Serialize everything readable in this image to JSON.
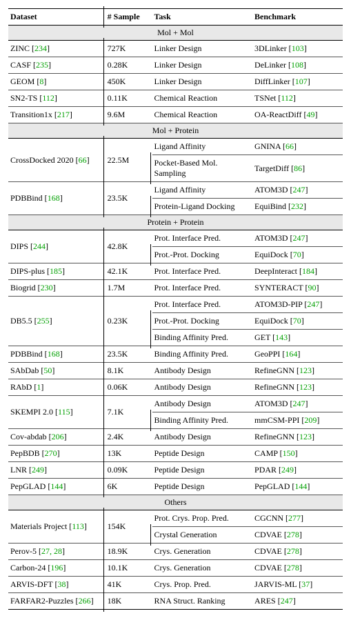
{
  "colors": {
    "cite": "#00a000",
    "section_bg": "#e8e8e8"
  },
  "headers": {
    "dataset": "Dataset",
    "sample": "# Sample",
    "task": "Task",
    "benchmark": "Benchmark"
  },
  "sections": [
    {
      "title": "Mol + Mol",
      "rows": [
        {
          "dataset_name": "ZINC",
          "dataset_cite": "234",
          "sample": "727K",
          "tasks": [
            {
              "task": "Linker Design",
              "bench_name": "3DLinker",
              "bench_cite": "103"
            }
          ]
        },
        {
          "dataset_name": "CASF",
          "dataset_cite": "235",
          "sample": "0.28K",
          "tasks": [
            {
              "task": "Linker Design",
              "bench_name": "DeLinker",
              "bench_cite": "108"
            }
          ]
        },
        {
          "dataset_name": "GEOM",
          "dataset_cite": "8",
          "sample": "450K",
          "tasks": [
            {
              "task": "Linker Design",
              "bench_name": "DiffLinker",
              "bench_cite": "107"
            }
          ]
        },
        {
          "dataset_name": "SN2-TS",
          "dataset_cite": "112",
          "sample": "0.11K",
          "tasks": [
            {
              "task": "Chemical Reaction",
              "bench_name": "TSNet",
              "bench_cite": "112"
            }
          ]
        },
        {
          "dataset_name": "Transition1x",
          "dataset_cite": "217",
          "sample": "9.6M",
          "tasks": [
            {
              "task": "Chemical Reaction",
              "bench_name": "OA-ReactDiff",
              "bench_cite": "49"
            }
          ]
        }
      ]
    },
    {
      "title": "Mol + Protein",
      "rows": [
        {
          "dataset_name": "CrossDocked 2020",
          "dataset_cite": "66",
          "sample": "22.5M",
          "tasks": [
            {
              "task": "Ligand Affinity",
              "bench_name": "GNINA",
              "bench_cite": "66"
            },
            {
              "task": "Pocket-Based Mol. Sampling",
              "bench_name": "TargetDiff",
              "bench_cite": "86"
            }
          ]
        },
        {
          "dataset_name": "PDBBind",
          "dataset_cite": "168",
          "sample": "23.5K",
          "tasks": [
            {
              "task": "Ligand Affinity",
              "bench_name": "ATOM3D",
              "bench_cite": "247"
            },
            {
              "task": "Protein-Ligand Docking",
              "bench_name": "EquiBind",
              "bench_cite": "232"
            }
          ]
        }
      ]
    },
    {
      "title": "Protein + Protein",
      "rows": [
        {
          "dataset_name": "DIPS",
          "dataset_cite": "244",
          "sample": "42.8K",
          "tasks": [
            {
              "task": "Prot. Interface Pred.",
              "bench_name": "ATOM3D",
              "bench_cite": "247"
            },
            {
              "task": "Prot.-Prot. Docking",
              "bench_name": "EquiDock",
              "bench_cite": "70"
            }
          ]
        },
        {
          "dataset_name": "DIPS-plus",
          "dataset_cite": "185",
          "sample": "42.1K",
          "tasks": [
            {
              "task": "Prot. Interface Pred.",
              "bench_name": "DeepInteract",
              "bench_cite": "184"
            }
          ]
        },
        {
          "dataset_name": "Biogrid",
          "dataset_cite": "230",
          "sample": "1.7M",
          "tasks": [
            {
              "task": "Prot. Interface Pred.",
              "bench_name": "SYNTERACT",
              "bench_cite": "90"
            }
          ]
        },
        {
          "dataset_name": "DB5.5",
          "dataset_cite": "255",
          "sample": "0.23K",
          "tasks": [
            {
              "task": "Prot. Interface Pred.",
              "bench_name": "ATOM3D-PIP",
              "bench_cite": "247"
            },
            {
              "task": "Prot.-Prot. Docking",
              "bench_name": "EquiDock",
              "bench_cite": "70"
            },
            {
              "task": "Binding Affinity Pred.",
              "bench_name": "GET",
              "bench_cite": "143"
            }
          ]
        },
        {
          "dataset_name": "PDBBind",
          "dataset_cite": "168",
          "sample": "23.5K",
          "tasks": [
            {
              "task": "Binding Affinity Pred.",
              "bench_name": "GeoPPI",
              "bench_cite": "164"
            }
          ]
        },
        {
          "dataset_name": "SAbDab",
          "dataset_cite": "50",
          "sample": "8.1K",
          "tasks": [
            {
              "task": "Antibody Design",
              "bench_name": "RefineGNN",
              "bench_cite": "123"
            }
          ]
        },
        {
          "dataset_name": "RAbD",
          "dataset_cite": "1",
          "sample": "0.06K",
          "tasks": [
            {
              "task": "Antibody Design",
              "bench_name": "RefineGNN",
              "bench_cite": "123"
            }
          ]
        },
        {
          "dataset_name": "SKEMPI 2.0",
          "dataset_cite": "115",
          "sample": "7.1K",
          "tasks": [
            {
              "task": "Antibody Design",
              "bench_name": "ATOM3D",
              "bench_cite": "247"
            },
            {
              "task": "Binding Affinity Pred.",
              "bench_name": "mmCSM-PPI",
              "bench_cite": "209"
            }
          ]
        },
        {
          "dataset_name": "Cov-abdab",
          "dataset_cite": "206",
          "sample": "2.4K",
          "tasks": [
            {
              "task": "Antibody Design",
              "bench_name": "RefineGNN",
              "bench_cite": "123"
            }
          ]
        },
        {
          "dataset_name": "PepBDB",
          "dataset_cite": "270",
          "sample": "13K",
          "tasks": [
            {
              "task": "Peptide Design",
              "bench_name": "CAMP",
              "bench_cite": "150"
            }
          ]
        },
        {
          "dataset_name": "LNR",
          "dataset_cite": "249",
          "sample": "0.09K",
          "tasks": [
            {
              "task": "Peptide Design",
              "bench_name": "PDAR",
              "bench_cite": "249"
            }
          ]
        },
        {
          "dataset_name": "PepGLAD",
          "dataset_cite": "144",
          "sample": "6K",
          "tasks": [
            {
              "task": "Peptide Design",
              "bench_name": "PepGLAD",
              "bench_cite": "144"
            }
          ]
        }
      ]
    },
    {
      "title": "Others",
      "rows": [
        {
          "dataset_name": "Materials Project",
          "dataset_cite": "113",
          "sample": "154K",
          "tasks": [
            {
              "task": "Prot. Crys. Prop. Pred.",
              "bench_name": "CGCNN",
              "bench_cite": "277"
            },
            {
              "task": "Crystal Generation",
              "bench_name": "CDVAE",
              "bench_cite": "278"
            }
          ]
        },
        {
          "dataset_name": "Perov-5",
          "dataset_cite": "27, 28",
          "sample": "18.9K",
          "tasks": [
            {
              "task": "Crys. Generation",
              "bench_name": "CDVAE",
              "bench_cite": "278"
            }
          ]
        },
        {
          "dataset_name": "Carbon-24",
          "dataset_cite": "196",
          "sample": "10.1K",
          "tasks": [
            {
              "task": "Crys. Generation",
              "bench_name": "CDVAE",
              "bench_cite": "278"
            }
          ]
        },
        {
          "dataset_name": "ARVIS-DFT",
          "dataset_cite": "38",
          "sample": "41K",
          "tasks": [
            {
              "task": "Crys. Prop. Pred.",
              "bench_name": "JARVIS-ML",
              "bench_cite": "37"
            }
          ]
        },
        {
          "dataset_name": "FARFAR2-Puzzles",
          "dataset_cite": "266",
          "sample": "18K",
          "tasks": [
            {
              "task": "RNA Struct. Ranking",
              "bench_name": "ARES",
              "bench_cite": "247"
            }
          ]
        }
      ]
    }
  ]
}
